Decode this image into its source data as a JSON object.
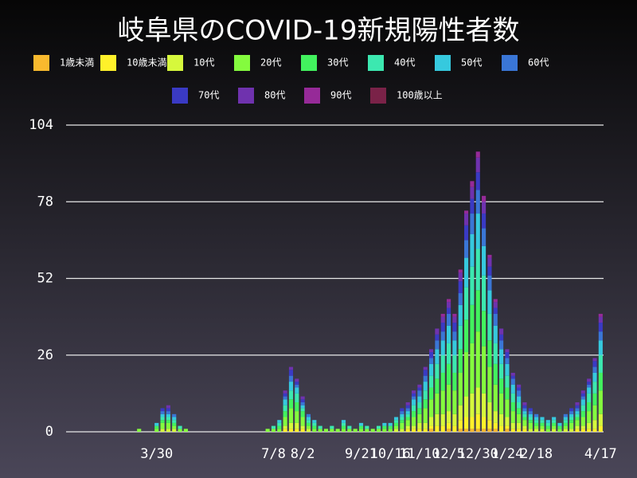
{
  "chart_data": {
    "type": "bar",
    "stacked": true,
    "title": "岐阜県のCOVID-19新規陽性者数",
    "categories": [
      null,
      null,
      null,
      null,
      null,
      null,
      null,
      null,
      null,
      null,
      null,
      null,
      null,
      null,
      null,
      "3/30",
      null,
      null,
      null,
      null,
      null,
      null,
      null,
      null,
      null,
      null,
      null,
      null,
      null,
      null,
      null,
      null,
      null,
      null,
      null,
      "7/8",
      null,
      null,
      null,
      null,
      "8/2",
      null,
      null,
      null,
      null,
      null,
      null,
      null,
      null,
      null,
      "9/21",
      null,
      null,
      null,
      null,
      "10/16",
      null,
      null,
      null,
      null,
      "11/10",
      null,
      null,
      null,
      null,
      "12/5",
      null,
      null,
      null,
      null,
      "12/30",
      null,
      null,
      null,
      null,
      "1/24",
      null,
      null,
      null,
      null,
      "2/18",
      null,
      null,
      null,
      null,
      null,
      null,
      null,
      null,
      null,
      null,
      "4/17"
    ],
    "series": [
      {
        "name": "1歳未満",
        "color": "#f8b92e",
        "values": [
          0,
          0,
          0,
          0,
          0,
          0,
          0,
          0,
          0,
          0,
          0,
          0,
          0,
          0,
          0,
          0,
          0,
          0,
          0,
          0,
          0,
          0,
          0,
          0,
          0,
          0,
          0,
          0,
          0,
          0,
          0,
          0,
          0,
          0,
          0,
          0,
          0,
          0,
          0,
          0,
          0,
          0,
          0,
          0,
          0,
          0,
          0,
          0,
          0,
          0,
          0,
          0,
          0,
          0,
          0,
          0,
          0,
          0,
          0,
          0,
          0,
          0,
          1,
          0,
          0,
          1,
          0,
          1,
          1,
          1,
          1,
          1,
          1,
          1,
          0,
          1,
          0,
          0,
          0,
          0,
          0,
          0,
          0,
          0,
          0,
          0,
          0,
          0,
          0,
          0,
          0,
          0
        ]
      },
      {
        "name": "10歳未満",
        "color": "#fff12a",
        "values": [
          0,
          0,
          0,
          0,
          0,
          0,
          0,
          0,
          0,
          0,
          0,
          0,
          0,
          0,
          0,
          0,
          0,
          0,
          0,
          0,
          0,
          0,
          0,
          0,
          0,
          0,
          0,
          0,
          0,
          0,
          0,
          0,
          0,
          0,
          0,
          0,
          0,
          1,
          1,
          1,
          1,
          0,
          0,
          0,
          0,
          0,
          0,
          0,
          0,
          0,
          0,
          0,
          0,
          0,
          0,
          0,
          0,
          0,
          1,
          1,
          1,
          1,
          1,
          2,
          2,
          2,
          2,
          3,
          4,
          4,
          5,
          4,
          3,
          2,
          2,
          1,
          1,
          1,
          1,
          0,
          0,
          0,
          0,
          0,
          0,
          0,
          0,
          1,
          1,
          1,
          1,
          2
        ]
      },
      {
        "name": "10代",
        "color": "#d6f83c",
        "values": [
          0,
          0,
          0,
          0,
          0,
          0,
          0,
          0,
          0,
          0,
          0,
          0,
          0,
          0,
          0,
          0,
          1,
          1,
          1,
          0,
          0,
          0,
          0,
          0,
          0,
          0,
          0,
          0,
          0,
          0,
          0,
          0,
          0,
          0,
          0,
          0,
          0,
          1,
          2,
          2,
          1,
          1,
          0,
          0,
          0,
          0,
          0,
          0,
          0,
          0,
          0,
          0,
          0,
          0,
          0,
          0,
          1,
          1,
          1,
          1,
          2,
          2,
          3,
          4,
          4,
          4,
          4,
          5,
          7,
          8,
          9,
          8,
          6,
          4,
          4,
          3,
          2,
          2,
          1,
          1,
          1,
          1,
          0,
          1,
          0,
          1,
          1,
          1,
          1,
          2,
          3,
          4
        ]
      },
      {
        "name": "20代",
        "color": "#84fb3e",
        "values": [
          0,
          0,
          0,
          0,
          0,
          0,
          0,
          0,
          0,
          0,
          0,
          0,
          1,
          0,
          0,
          1,
          2,
          2,
          1,
          1,
          1,
          0,
          0,
          0,
          0,
          0,
          0,
          0,
          0,
          0,
          0,
          0,
          0,
          0,
          1,
          1,
          1,
          3,
          5,
          4,
          3,
          1,
          1,
          1,
          1,
          1,
          1,
          1,
          1,
          1,
          1,
          1,
          1,
          1,
          1,
          1,
          1,
          2,
          2,
          3,
          3,
          5,
          6,
          7,
          8,
          9,
          8,
          11,
          15,
          17,
          19,
          16,
          12,
          9,
          7,
          6,
          4,
          3,
          2,
          2,
          1,
          1,
          1,
          1,
          1,
          1,
          2,
          2,
          3,
          4,
          5,
          8
        ]
      },
      {
        "name": "30代",
        "color": "#42f25e",
        "values": [
          0,
          0,
          0,
          0,
          0,
          0,
          0,
          0,
          0,
          0,
          0,
          0,
          0,
          0,
          0,
          1,
          1,
          1,
          1,
          0,
          0,
          0,
          0,
          0,
          0,
          0,
          0,
          0,
          0,
          0,
          0,
          0,
          0,
          0,
          0,
          0,
          1,
          2,
          3,
          3,
          2,
          1,
          1,
          0,
          0,
          0,
          0,
          1,
          0,
          0,
          1,
          0,
          0,
          0,
          1,
          1,
          1,
          1,
          1,
          2,
          2,
          3,
          4,
          5,
          6,
          7,
          6,
          8,
          11,
          13,
          14,
          12,
          9,
          7,
          5,
          4,
          3,
          2,
          1,
          1,
          1,
          1,
          1,
          1,
          1,
          1,
          1,
          1,
          2,
          3,
          4,
          6
        ]
      },
      {
        "name": "40代",
        "color": "#3ce8b0",
        "values": [
          0,
          0,
          0,
          0,
          0,
          0,
          0,
          0,
          0,
          0,
          0,
          0,
          0,
          0,
          0,
          0,
          1,
          1,
          1,
          1,
          0,
          0,
          0,
          0,
          0,
          0,
          0,
          0,
          0,
          0,
          0,
          0,
          0,
          0,
          0,
          1,
          1,
          2,
          3,
          3,
          1,
          1,
          1,
          1,
          0,
          1,
          0,
          1,
          1,
          0,
          0,
          1,
          0,
          1,
          0,
          0,
          1,
          1,
          1,
          2,
          2,
          3,
          4,
          5,
          6,
          7,
          6,
          8,
          11,
          13,
          14,
          12,
          9,
          7,
          5,
          4,
          3,
          2,
          1,
          1,
          1,
          1,
          1,
          1,
          0,
          1,
          1,
          1,
          2,
          3,
          4,
          6
        ]
      },
      {
        "name": "50代",
        "color": "#36c9de",
        "values": [
          0,
          0,
          0,
          0,
          0,
          0,
          0,
          0,
          0,
          0,
          0,
          0,
          0,
          0,
          0,
          1,
          1,
          1,
          1,
          0,
          0,
          0,
          0,
          0,
          0,
          0,
          0,
          0,
          0,
          0,
          0,
          0,
          0,
          0,
          0,
          0,
          1,
          2,
          3,
          2,
          1,
          1,
          1,
          0,
          0,
          0,
          0,
          1,
          0,
          0,
          1,
          0,
          0,
          0,
          1,
          1,
          1,
          1,
          1,
          2,
          2,
          3,
          4,
          5,
          5,
          6,
          5,
          7,
          10,
          11,
          12,
          10,
          8,
          6,
          5,
          4,
          3,
          2,
          1,
          1,
          1,
          1,
          1,
          1,
          1,
          1,
          1,
          1,
          2,
          2,
          3,
          5
        ]
      },
      {
        "name": "60代",
        "color": "#3a76d6",
        "values": [
          0,
          0,
          0,
          0,
          0,
          0,
          0,
          0,
          0,
          0,
          0,
          0,
          0,
          0,
          0,
          0,
          1,
          1,
          1,
          0,
          0,
          0,
          0,
          0,
          0,
          0,
          0,
          0,
          0,
          0,
          0,
          0,
          0,
          0,
          0,
          0,
          0,
          1,
          2,
          1,
          1,
          1,
          0,
          0,
          0,
          0,
          0,
          0,
          0,
          0,
          0,
          0,
          0,
          0,
          0,
          0,
          0,
          1,
          1,
          1,
          2,
          2,
          2,
          3,
          3,
          4,
          3,
          4,
          6,
          7,
          8,
          6,
          5,
          4,
          3,
          2,
          2,
          2,
          1,
          1,
          1,
          0,
          0,
          0,
          0,
          1,
          1,
          1,
          1,
          1,
          2,
          3
        ]
      },
      {
        "name": "70代",
        "color": "#3a3ac4",
        "values": [
          0,
          0,
          0,
          0,
          0,
          0,
          0,
          0,
          0,
          0,
          0,
          0,
          0,
          0,
          0,
          0,
          1,
          1,
          0,
          0,
          0,
          0,
          0,
          0,
          0,
          0,
          0,
          0,
          0,
          0,
          0,
          0,
          0,
          0,
          0,
          0,
          0,
          1,
          2,
          1,
          1,
          0,
          0,
          0,
          0,
          0,
          0,
          0,
          0,
          0,
          0,
          0,
          0,
          0,
          0,
          0,
          0,
          1,
          1,
          1,
          1,
          2,
          2,
          2,
          3,
          2,
          3,
          4,
          5,
          5,
          6,
          5,
          3,
          2,
          2,
          2,
          1,
          1,
          1,
          1,
          0,
          0,
          0,
          0,
          0,
          0,
          1,
          1,
          1,
          1,
          2,
          3
        ]
      },
      {
        "name": "80代",
        "color": "#6f32ae",
        "values": [
          0,
          0,
          0,
          0,
          0,
          0,
          0,
          0,
          0,
          0,
          0,
          0,
          0,
          0,
          0,
          0,
          0,
          1,
          0,
          0,
          0,
          0,
          0,
          0,
          0,
          0,
          0,
          0,
          0,
          0,
          0,
          0,
          0,
          0,
          0,
          0,
          0,
          1,
          1,
          1,
          1,
          0,
          0,
          0,
          0,
          0,
          0,
          0,
          0,
          0,
          0,
          0,
          0,
          0,
          0,
          0,
          0,
          0,
          1,
          1,
          1,
          1,
          1,
          2,
          2,
          2,
          2,
          3,
          4,
          4,
          5,
          4,
          3,
          2,
          2,
          1,
          1,
          1,
          1,
          0,
          0,
          0,
          0,
          0,
          0,
          0,
          0,
          1,
          1,
          1,
          1,
          2
        ]
      },
      {
        "name": "90代",
        "color": "#962a98",
        "values": [
          0,
          0,
          0,
          0,
          0,
          0,
          0,
          0,
          0,
          0,
          0,
          0,
          0,
          0,
          0,
          0,
          0,
          0,
          0,
          0,
          0,
          0,
          0,
          0,
          0,
          0,
          0,
          0,
          0,
          0,
          0,
          0,
          0,
          0,
          0,
          0,
          0,
          0,
          0,
          0,
          0,
          0,
          0,
          0,
          0,
          0,
          0,
          0,
          0,
          0,
          0,
          0,
          0,
          0,
          0,
          0,
          0,
          0,
          0,
          0,
          0,
          0,
          0,
          0,
          1,
          1,
          1,
          1,
          1,
          2,
          2,
          2,
          1,
          1,
          0,
          0,
          0,
          0,
          0,
          0,
          0,
          0,
          0,
          0,
          0,
          0,
          0,
          0,
          0,
          0,
          0,
          1
        ]
      },
      {
        "name": "100歳以上",
        "color": "#7a2248",
        "values": [
          0,
          0,
          0,
          0,
          0,
          0,
          0,
          0,
          0,
          0,
          0,
          0,
          0,
          0,
          0,
          0,
          0,
          0,
          0,
          0,
          0,
          0,
          0,
          0,
          0,
          0,
          0,
          0,
          0,
          0,
          0,
          0,
          0,
          0,
          0,
          0,
          0,
          0,
          0,
          0,
          0,
          0,
          0,
          0,
          0,
          0,
          0,
          0,
          0,
          0,
          0,
          0,
          0,
          0,
          0,
          0,
          0,
          0,
          0,
          0,
          0,
          0,
          0,
          0,
          0,
          0,
          0,
          0,
          0,
          0,
          0,
          0,
          0,
          0,
          0,
          0,
          0,
          0,
          0,
          0,
          0,
          0,
          0,
          0,
          0,
          0,
          0,
          0,
          0,
          0,
          0,
          0
        ]
      }
    ],
    "ylim": [
      0,
      104
    ],
    "yticks": [
      0,
      26,
      52,
      78,
      104
    ],
    "grid": true,
    "legend": "top"
  }
}
